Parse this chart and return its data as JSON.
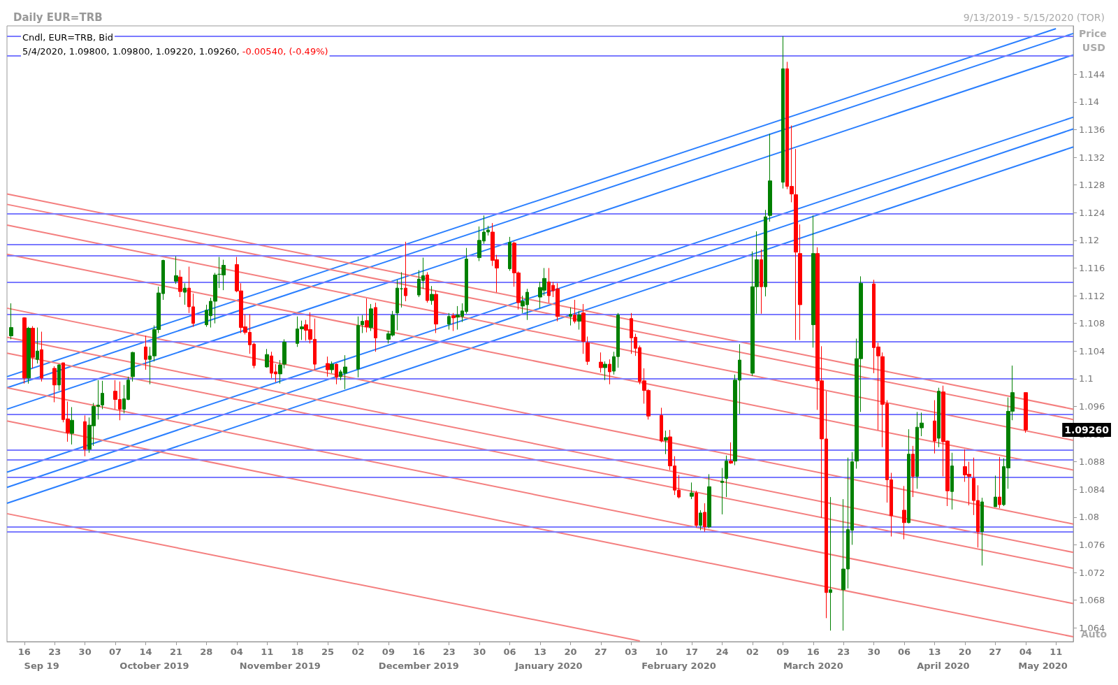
{
  "chart_data": {
    "type": "candlestick",
    "title": "Daily EUR=TRB",
    "subtitle": "9/13/2019 - 5/15/2020 (TOR)",
    "ylabel": "Price USD",
    "annotations": [
      "Cndl, EUR=TRB, Bid",
      "5/4/2020, 1.09800, 1.09800, 1.09220, 1.09260,",
      "-0.00540, (-0.49%)",
      "Auto",
      "1.09260"
    ],
    "xlim": [
      "2019-09-12",
      "2020-05-15"
    ],
    "xticks": [
      {
        "value": "2019-09-16",
        "label": "16"
      },
      {
        "value": "2019-09-23",
        "label": "23"
      },
      {
        "value": "2019-09-30",
        "label": "30"
      },
      {
        "value": "2019-10-07",
        "label": "07"
      },
      {
        "value": "2019-10-14",
        "label": "14"
      },
      {
        "value": "2019-10-21",
        "label": "21"
      },
      {
        "value": "2019-10-28",
        "label": "28"
      },
      {
        "value": "2019-11-04",
        "label": "04"
      },
      {
        "value": "2019-11-11",
        "label": "11"
      },
      {
        "value": "2019-11-18",
        "label": "18"
      },
      {
        "value": "2019-11-25",
        "label": "25"
      },
      {
        "value": "2019-12-02",
        "label": "02"
      },
      {
        "value": "2019-12-09",
        "label": "09"
      },
      {
        "value": "2019-12-16",
        "label": "16"
      },
      {
        "value": "2019-12-23",
        "label": "23"
      },
      {
        "value": "2019-12-30",
        "label": "30"
      },
      {
        "value": "2020-01-06",
        "label": "06"
      },
      {
        "value": "2020-01-13",
        "label": "13"
      },
      {
        "value": "2020-01-20",
        "label": "20"
      },
      {
        "value": "2020-01-27",
        "label": "27"
      },
      {
        "value": "2020-02-03",
        "label": "03"
      },
      {
        "value": "2020-02-10",
        "label": "10"
      },
      {
        "value": "2020-02-17",
        "label": "17"
      },
      {
        "value": "2020-02-24",
        "label": "24"
      },
      {
        "value": "2020-03-02",
        "label": "02"
      },
      {
        "value": "2020-03-09",
        "label": "09"
      },
      {
        "value": "2020-03-16",
        "label": "16"
      },
      {
        "value": "2020-03-23",
        "label": "23"
      },
      {
        "value": "2020-03-30",
        "label": "30"
      },
      {
        "value": "2020-04-06",
        "label": "06"
      },
      {
        "value": "2020-04-13",
        "label": "13"
      },
      {
        "value": "2020-04-20",
        "label": "20"
      },
      {
        "value": "2020-04-27",
        "label": "27"
      },
      {
        "value": "2020-05-04",
        "label": "04"
      },
      {
        "value": "2020-05-11",
        "label": "11"
      }
    ],
    "x2lim": [
      "2019-09-12",
      "2020-05-15"
    ],
    "x2ticks": [
      {
        "value": "2019-09-20",
        "label": "Sep 19"
      },
      {
        "value": "2019-10-16",
        "label": "October 2019"
      },
      {
        "value": "2019-11-14",
        "label": "November 2019"
      },
      {
        "value": "2019-12-16",
        "label": "December 2019"
      },
      {
        "value": "2020-01-15",
        "label": "January 2020"
      },
      {
        "value": "2020-02-14",
        "label": "February 2020"
      },
      {
        "value": "2020-03-16",
        "label": "March 2020"
      },
      {
        "value": "2020-04-15",
        "label": "April 2020"
      },
      {
        "value": "2020-05-08",
        "label": "May 2020"
      }
    ],
    "ylim": [
      1.062,
      1.151
    ],
    "yticks": [
      1.064,
      1.068,
      1.072,
      1.076,
      1.08,
      1.084,
      1.088,
      1.092,
      1.096,
      1.1,
      1.104,
      1.108,
      1.112,
      1.116,
      1.12,
      1.124,
      1.128,
      1.132,
      1.136,
      1.14,
      1.144
    ],
    "grid": false,
    "ref_lines": [
      {
        "axis": "y",
        "value": 1.1495,
        "color": "#7a7aff"
      },
      {
        "axis": "y",
        "value": 1.1467,
        "color": "#7a7aff"
      },
      {
        "axis": "y",
        "value": 1.1238,
        "color": "#7a7aff"
      },
      {
        "axis": "y",
        "value": 1.1194,
        "color": "#7a7aff"
      },
      {
        "axis": "y",
        "value": 1.1178,
        "color": "#7a7aff"
      },
      {
        "axis": "y",
        "value": 1.1139,
        "color": "#7a7aff"
      },
      {
        "axis": "y",
        "value": 1.1093,
        "color": "#7a7aff"
      },
      {
        "axis": "y",
        "value": 1.1054,
        "color": "#7a7aff"
      },
      {
        "axis": "y",
        "value": 1.1,
        "color": "#7a7aff"
      },
      {
        "axis": "y",
        "value": 1.0949,
        "color": "#7a7aff"
      },
      {
        "axis": "y",
        "value": 1.0897,
        "color": "#7a7aff"
      },
      {
        "axis": "y",
        "value": 1.0883,
        "color": "#7a7aff"
      },
      {
        "axis": "y",
        "value": 1.0858,
        "color": "#7a7aff"
      },
      {
        "axis": "y",
        "value": 1.0786,
        "color": "#7a7aff"
      },
      {
        "axis": "y",
        "value": 1.0779,
        "color": "#7a7aff"
      }
    ],
    "series": [
      {
        "x": [
          "2019-09-13",
          "2019-09-16",
          "2019-09-17",
          "2019-09-18",
          "2019-09-19",
          "2019-09-20",
          "2019-09-23",
          "2019-09-24",
          "2019-09-25",
          "2019-09-26",
          "2019-09-27",
          "2019-09-30",
          "2019-10-01",
          "2019-10-02",
          "2019-10-03",
          "2019-10-04",
          "2019-10-07",
          "2019-10-08",
          "2019-10-09",
          "2019-10-10",
          "2019-10-11",
          "2019-10-14",
          "2019-10-15",
          "2019-10-16",
          "2019-10-17",
          "2019-10-18",
          "2019-10-21",
          "2019-10-22",
          "2019-10-23",
          "2019-10-24",
          "2019-10-25",
          "2019-10-28",
          "2019-10-29",
          "2019-10-30",
          "2019-10-31",
          "2019-11-01",
          "2019-11-04",
          "2019-11-05",
          "2019-11-06",
          "2019-11-07",
          "2019-11-08",
          "2019-11-11",
          "2019-11-12",
          "2019-11-13",
          "2019-11-14",
          "2019-11-15",
          "2019-11-18",
          "2019-11-19",
          "2019-11-20",
          "2019-11-21",
          "2019-11-22",
          "2019-11-25",
          "2019-11-26",
          "2019-11-27",
          "2019-11-28",
          "2019-11-29",
          "2019-12-02",
          "2019-12-03",
          "2019-12-04",
          "2019-12-05",
          "2019-12-06",
          "2019-12-09",
          "2019-12-10",
          "2019-12-11",
          "2019-12-12",
          "2019-12-13",
          "2019-12-16",
          "2019-12-17",
          "2019-12-18",
          "2019-12-19",
          "2019-12-20",
          "2019-12-23",
          "2019-12-24",
          "2019-12-25",
          "2019-12-26",
          "2019-12-27",
          "2019-12-30",
          "2019-12-31",
          "2020-01-01",
          "2020-01-02",
          "2020-01-03",
          "2020-01-06",
          "2020-01-07",
          "2020-01-08",
          "2020-01-09",
          "2020-01-10",
          "2020-01-13",
          "2020-01-14",
          "2020-01-15",
          "2020-01-16",
          "2020-01-17",
          "2020-01-20",
          "2020-01-21",
          "2020-01-22",
          "2020-01-23",
          "2020-01-24",
          "2020-01-27",
          "2020-01-28",
          "2020-01-29",
          "2020-01-30",
          "2020-01-31",
          "2020-02-03",
          "2020-02-04",
          "2020-02-05",
          "2020-02-06",
          "2020-02-07",
          "2020-02-10",
          "2020-02-11",
          "2020-02-12",
          "2020-02-13",
          "2020-02-14",
          "2020-02-17",
          "2020-02-18",
          "2020-02-19",
          "2020-02-20",
          "2020-02-21",
          "2020-02-24",
          "2020-02-25",
          "2020-02-26",
          "2020-02-27",
          "2020-02-28",
          "2020-03-02",
          "2020-03-03",
          "2020-03-04",
          "2020-03-05",
          "2020-03-06",
          "2020-03-09",
          "2020-03-10",
          "2020-03-11",
          "2020-03-12",
          "2020-03-13",
          "2020-03-16",
          "2020-03-17",
          "2020-03-18",
          "2020-03-19",
          "2020-03-20",
          "2020-03-23",
          "2020-03-24",
          "2020-03-25",
          "2020-03-26",
          "2020-03-27",
          "2020-03-30",
          "2020-03-31",
          "2020-04-01",
          "2020-04-02",
          "2020-04-03",
          "2020-04-06",
          "2020-04-07",
          "2020-04-08",
          "2020-04-09",
          "2020-04-10",
          "2020-04-13",
          "2020-04-14",
          "2020-04-15",
          "2020-04-16",
          "2020-04-17",
          "2020-04-20",
          "2020-04-21",
          "2020-04-22",
          "2020-04-23",
          "2020-04-24",
          "2020-04-27",
          "2020-04-28",
          "2020-04-29",
          "2020-04-30",
          "2020-05-01",
          "2020-05-04"
        ],
        "ohlc": [
          [
            1.1062,
            1.1109,
            1.1057,
            1.1074
          ],
          [
            1.1088,
            1.1089,
            1.0993,
            1.1001
          ],
          [
            1.1001,
            1.1075,
            1.0993,
            1.1073
          ],
          [
            1.1073,
            1.1076,
            1.1015,
            1.1031
          ],
          [
            1.1028,
            1.1074,
            1.1022,
            1.104
          ],
          [
            1.1042,
            1.1068,
            1.0996,
            1.1001
          ],
          [
            1.1015,
            1.1018,
            1.0966,
            1.0991
          ],
          [
            1.0991,
            1.1021,
            1.0983,
            1.102
          ],
          [
            1.1023,
            1.1023,
            1.0937,
            1.0941
          ],
          [
            1.0942,
            1.0967,
            1.0909,
            1.0922
          ],
          [
            1.0921,
            1.0959,
            1.0905,
            1.094
          ],
          [
            1.0938,
            1.0947,
            1.0888,
            1.0898
          ],
          [
            1.0898,
            1.0944,
            1.0893,
            1.0933
          ],
          [
            1.0932,
            1.0965,
            1.0903,
            1.096
          ],
          [
            1.096,
            1.0998,
            1.0941,
            1.0962
          ],
          [
            1.0962,
            1.0997,
            1.0956,
            1.0979
          ],
          [
            1.0982,
            1.0998,
            1.0956,
            1.097
          ],
          [
            1.097,
            1.0996,
            1.094,
            1.0956
          ],
          [
            1.0956,
            1.0991,
            1.095,
            1.0971
          ],
          [
            1.097,
            1.1003,
            1.0969,
            1.0998
          ],
          [
            1.1003,
            1.1039,
            1.0996,
            1.1038
          ],
          [
            1.1046,
            1.1062,
            1.1013,
            1.1028
          ],
          [
            1.1028,
            1.1046,
            1.0992,
            1.1033
          ],
          [
            1.1033,
            1.1077,
            1.1025,
            1.1071
          ],
          [
            1.1071,
            1.1133,
            1.1066,
            1.1124
          ],
          [
            1.1123,
            1.1172,
            1.1114,
            1.1171
          ],
          [
            1.1141,
            1.1177,
            1.1137,
            1.1149
          ],
          [
            1.1147,
            1.1157,
            1.1118,
            1.1126
          ],
          [
            1.1125,
            1.1138,
            1.1107,
            1.1131
          ],
          [
            1.1131,
            1.1162,
            1.1095,
            1.1104
          ],
          [
            1.1104,
            1.1123,
            1.1075,
            1.108
          ],
          [
            1.1078,
            1.1107,
            1.1075,
            1.1099
          ],
          [
            1.1091,
            1.1117,
            1.1074,
            1.1112
          ],
          [
            1.1112,
            1.1153,
            1.108,
            1.115
          ],
          [
            1.1151,
            1.1176,
            1.1131,
            1.1151
          ],
          [
            1.115,
            1.1172,
            1.1128,
            1.1164
          ],
          [
            1.1165,
            1.1176,
            1.1125,
            1.1127
          ],
          [
            1.1127,
            1.1138,
            1.1066,
            1.1074
          ],
          [
            1.1075,
            1.1093,
            1.1064,
            1.1067
          ],
          [
            1.1067,
            1.1093,
            1.1036,
            1.1049
          ],
          [
            1.105,
            1.1052,
            1.1015,
            1.1019
          ],
          [
            1.1017,
            1.1043,
            1.1016,
            1.1035
          ],
          [
            1.1033,
            1.1039,
            1.1001,
            1.1008
          ],
          [
            1.101,
            1.1021,
            1.0995,
            1.1007
          ],
          [
            1.1007,
            1.1027,
            1.0993,
            1.102
          ],
          [
            1.1021,
            1.1057,
            1.1015,
            1.1053
          ],
          [
            1.1051,
            1.109,
            1.1046,
            1.1072
          ],
          [
            1.1072,
            1.1084,
            1.1056,
            1.1075
          ],
          [
            1.1078,
            1.1085,
            1.1055,
            1.107
          ],
          [
            1.1071,
            1.1096,
            1.1051,
            1.1057
          ],
          [
            1.1057,
            1.1087,
            1.1013,
            1.1021
          ],
          [
            1.1022,
            1.1032,
            1.1003,
            1.1013
          ],
          [
            1.1013,
            1.1025,
            1.1008,
            1.1021
          ],
          [
            1.1021,
            1.1022,
            1.0992,
            1.1002
          ],
          [
            1.1003,
            1.1013,
            1.0998,
            1.101
          ],
          [
            1.1008,
            1.1034,
            1.0985,
            1.1017
          ],
          [
            1.1014,
            1.109,
            1.1002,
            1.1077
          ],
          [
            1.1078,
            1.1092,
            1.1066,
            1.1083
          ],
          [
            1.1084,
            1.1116,
            1.1067,
            1.1075
          ],
          [
            1.1074,
            1.1108,
            1.1069,
            1.1101
          ],
          [
            1.1103,
            1.111,
            1.1039,
            1.1059
          ],
          [
            1.1057,
            1.1069,
            1.1051,
            1.1065
          ],
          [
            1.1063,
            1.1098,
            1.1061,
            1.1092
          ],
          [
            1.1095,
            1.1143,
            1.107,
            1.1131
          ],
          [
            1.113,
            1.1154,
            1.1103,
            1.113
          ],
          [
            1.1131,
            1.1198,
            1.1112,
            1.112
          ],
          [
            1.1121,
            1.1157,
            1.1118,
            1.1144
          ],
          [
            1.1142,
            1.1175,
            1.113,
            1.1149
          ],
          [
            1.115,
            1.1154,
            1.111,
            1.1113
          ],
          [
            1.1113,
            1.1134,
            1.1107,
            1.1122
          ],
          [
            1.1122,
            1.1127,
            1.1066,
            1.1079
          ],
          [
            1.1079,
            1.1095,
            1.1071,
            1.109
          ],
          [
            1.1091,
            1.1095,
            1.1069,
            1.1088
          ],
          [
            1.1089,
            1.1105,
            1.1071,
            1.1092
          ],
          [
            1.109,
            1.1109,
            1.1082,
            1.1098
          ],
          [
            1.1097,
            1.1189,
            1.1094,
            1.1173
          ],
          [
            1.1175,
            1.122,
            1.117,
            1.12
          ],
          [
            1.1199,
            1.1236,
            1.1195,
            1.1212
          ],
          [
            1.1212,
            1.1221,
            1.1207,
            1.1215
          ],
          [
            1.1212,
            1.1225,
            1.1163,
            1.1171
          ],
          [
            1.1172,
            1.1179,
            1.1125,
            1.116
          ],
          [
            1.1159,
            1.1205,
            1.1156,
            1.1197
          ],
          [
            1.1196,
            1.1198,
            1.1133,
            1.1153
          ],
          [
            1.1153,
            1.1155,
            1.11,
            1.111
          ],
          [
            1.1105,
            1.112,
            1.1095,
            1.1112
          ],
          [
            1.1107,
            1.113,
            1.1085,
            1.1125
          ],
          [
            1.1118,
            1.114,
            1.1102,
            1.1132
          ],
          [
            1.1128,
            1.116,
            1.112,
            1.1145
          ],
          [
            1.114,
            1.116,
            1.111,
            1.112
          ],
          [
            1.1135,
            1.114,
            1.1118,
            1.1127
          ],
          [
            1.113,
            1.1138,
            1.1083,
            1.109
          ],
          [
            1.109,
            1.1103,
            1.1077,
            1.1093
          ],
          [
            1.1092,
            1.1114,
            1.108,
            1.1083
          ],
          [
            1.1083,
            1.1098,
            1.1071,
            1.1092
          ],
          [
            1.1095,
            1.1108,
            1.1036,
            1.1054
          ],
          [
            1.1052,
            1.1061,
            1.102,
            1.1025
          ],
          [
            1.1024,
            1.1038,
            1.1009,
            1.1016
          ],
          [
            1.1016,
            1.1025,
            1.0998,
            1.1021
          ],
          [
            1.1021,
            1.1028,
            1.0992,
            1.101
          ],
          [
            1.1011,
            1.1039,
            1.1006,
            1.1032
          ],
          [
            1.1032,
            1.1095,
            1.1016,
            1.1092
          ],
          [
            1.1087,
            1.1095,
            1.1036,
            1.1059
          ],
          [
            1.106,
            1.1065,
            1.1033,
            1.1044
          ],
          [
            1.1045,
            1.1048,
            1.0992,
            1.0996
          ],
          [
            1.0997,
            1.1015,
            1.0964,
            1.0983
          ],
          [
            1.0983,
            1.0985,
            1.0941,
            1.0946
          ],
          [
            1.0947,
            1.0958,
            1.0908,
            1.091
          ],
          [
            1.0911,
            1.0925,
            1.0891,
            1.0915
          ],
          [
            1.0916,
            1.0926,
            1.0868,
            1.0874
          ],
          [
            1.0874,
            1.0888,
            1.0832,
            1.0839
          ],
          [
            1.0839,
            1.0861,
            1.0827,
            1.0829
          ],
          [
            1.083,
            1.085,
            1.0826,
            1.0835
          ],
          [
            1.0835,
            1.0838,
            1.0785,
            1.0788
          ],
          [
            1.0788,
            1.081,
            1.0781,
            1.0806
          ],
          [
            1.0807,
            1.082,
            1.0779,
            1.0786
          ],
          [
            1.0786,
            1.0862,
            1.0784,
            1.0844
          ],
          [
            1.085,
            1.0871,
            1.0804,
            1.0852
          ],
          [
            1.0856,
            1.0889,
            1.0829,
            1.0881
          ],
          [
            1.0881,
            1.0908,
            1.0877,
            1.0878
          ],
          [
            1.0881,
            1.1006,
            1.0875,
            1.0998
          ],
          [
            1.0998,
            1.105,
            1.0949,
            1.1027
          ],
          [
            1.1008,
            1.1184,
            1.1004,
            1.1133
          ],
          [
            1.1133,
            1.1213,
            1.1094,
            1.1172
          ],
          [
            1.1172,
            1.1187,
            1.1094,
            1.1133
          ],
          [
            1.1133,
            1.1244,
            1.1119,
            1.1234
          ],
          [
            1.1236,
            1.1354,
            1.1227,
            1.1286
          ],
          [
            1.1284,
            1.1495,
            1.1275,
            1.1448
          ],
          [
            1.1448,
            1.1458,
            1.1274,
            1.1278
          ],
          [
            1.1278,
            1.1366,
            1.1255,
            1.1267
          ],
          [
            1.1266,
            1.1332,
            1.1056,
            1.1183
          ],
          [
            1.1181,
            1.1223,
            1.1056,
            1.1107
          ],
          [
            1.1078,
            1.1236,
            1.1045,
            1.1181
          ],
          [
            1.1181,
            1.119,
            1.0955,
            1.0997
          ],
          [
            1.0997,
            1.1047,
            1.0799,
            1.0913
          ],
          [
            1.0913,
            1.0982,
            1.0654,
            1.0691
          ],
          [
            1.0691,
            1.0829,
            1.0636,
            1.0695
          ],
          [
            1.0695,
            1.0826,
            1.0636,
            1.0725
          ],
          [
            1.0725,
            1.0886,
            1.0697,
            1.0782
          ],
          [
            1.0781,
            1.0894,
            1.076,
            1.088
          ],
          [
            1.0881,
            1.1058,
            1.087,
            1.1029
          ],
          [
            1.1029,
            1.1148,
            1.0952,
            1.1138
          ],
          [
            1.1137,
            1.1143,
            1.1008,
            1.1045
          ],
          [
            1.1046,
            1.1052,
            1.0926,
            1.1033
          ],
          [
            1.1032,
            1.1038,
            1.0901,
            1.0963
          ],
          [
            1.0964,
            1.0969,
            1.0821,
            1.0854
          ],
          [
            1.0854,
            1.0864,
            1.0772,
            1.0802
          ],
          [
            1.081,
            1.0845,
            1.0768,
            1.0792
          ],
          [
            1.0792,
            1.0927,
            1.0791,
            1.0891
          ],
          [
            1.0891,
            1.0903,
            1.0829,
            1.0859
          ],
          [
            1.0859,
            1.0952,
            1.0841,
            1.093
          ],
          [
            1.0929,
            1.0951,
            1.0917,
            1.0936
          ],
          [
            1.0939,
            1.0969,
            1.0892,
            1.091
          ],
          [
            1.0914,
            1.0987,
            1.0901,
            1.0982
          ],
          [
            1.0981,
            1.099,
            1.0859,
            1.0909
          ],
          [
            1.091,
            1.0911,
            1.0816,
            1.0838
          ],
          [
            1.0837,
            1.0893,
            1.0811,
            1.0874
          ],
          [
            1.0873,
            1.0898,
            1.0851,
            1.0861
          ],
          [
            1.0862,
            1.088,
            1.0817,
            1.0859
          ],
          [
            1.0856,
            1.0886,
            1.0803,
            1.0824
          ],
          [
            1.0824,
            1.0846,
            1.0756,
            1.0779
          ],
          [
            1.0779,
            1.0828,
            1.073,
            1.0822
          ],
          [
            1.0815,
            1.086,
            1.0815,
            1.0829
          ],
          [
            1.0829,
            1.0887,
            1.0813,
            1.0818
          ],
          [
            1.0818,
            1.0885,
            1.0816,
            1.0873
          ],
          [
            1.0871,
            1.0973,
            1.0841,
            1.0953
          ],
          [
            1.0953,
            1.1019,
            1.094,
            1.098
          ],
          [
            1.098,
            1.098,
            1.0922,
            1.0926
          ]
        ],
        "colors": [
          "#008000",
          "#ff0000",
          "#008000",
          "#ff0000",
          "#008000",
          "#ff0000",
          "#ff0000",
          "#008000",
          "#ff0000",
          "#ff0000",
          "#008000",
          "#ff0000",
          "#008000",
          "#008000",
          "#008000",
          "#008000",
          "#ff0000",
          "#ff0000",
          "#008000",
          "#008000",
          "#008000",
          "#ff0000",
          "#008000",
          "#008000",
          "#008000",
          "#008000",
          "#008000",
          "#ff0000",
          "#008000",
          "#ff0000",
          "#ff0000",
          "#008000",
          "#008000",
          "#008000",
          "#008000",
          "#008000",
          "#ff0000",
          "#ff0000",
          "#ff0000",
          "#ff0000",
          "#ff0000",
          "#008000",
          "#ff0000",
          "#ff0000",
          "#008000",
          "#008000",
          "#008000",
          "#008000",
          "#ff0000",
          "#ff0000",
          "#ff0000",
          "#ff0000",
          "#008000",
          "#ff0000",
          "#008000",
          "#008000",
          "#008000",
          "#008000",
          "#ff0000",
          "#008000",
          "#ff0000",
          "#008000",
          "#008000",
          "#008000",
          "#008000",
          "#ff0000",
          "#008000",
          "#008000",
          "#ff0000",
          "#008000",
          "#ff0000",
          "#008000",
          "#ff0000",
          "#008000",
          "#008000",
          "#008000",
          "#008000",
          "#008000",
          "#008000",
          "#ff0000",
          "#ff0000",
          "#008000",
          "#ff0000",
          "#ff0000",
          "#008000",
          "#008000",
          "#008000",
          "#008000",
          "#ff0000",
          "#ff0000",
          "#ff0000",
          "#008000",
          "#ff0000",
          "#008000",
          "#ff0000",
          "#ff0000",
          "#ff0000",
          "#008000",
          "#ff0000",
          "#008000",
          "#008000",
          "#ff0000",
          "#ff0000",
          "#ff0000",
          "#ff0000",
          "#ff0000",
          "#ff0000",
          "#008000",
          "#ff0000",
          "#ff0000",
          "#ff0000",
          "#008000",
          "#ff0000",
          "#008000",
          "#ff0000",
          "#008000",
          "#008000",
          "#008000",
          "#ff0000",
          "#008000",
          "#008000",
          "#008000",
          "#008000",
          "#ff0000",
          "#008000",
          "#008000",
          "#008000",
          "#ff0000",
          "#ff0000",
          "#ff0000",
          "#ff0000",
          "#008000",
          "#ff0000",
          "#ff0000",
          "#ff0000",
          "#008000",
          "#008000",
          "#008000",
          "#008000",
          "#008000",
          "#008000",
          "#ff0000",
          "#ff0000",
          "#ff0000",
          "#ff0000",
          "#ff0000",
          "#ff0000",
          "#008000",
          "#ff0000",
          "#008000",
          "#008000",
          "#ff0000",
          "#008000",
          "#ff0000",
          "#ff0000",
          "#008000",
          "#ff0000",
          "#ff0000",
          "#ff0000",
          "#ff0000",
          "#008000",
          "#008000",
          "#ff0000",
          "#008000",
          "#008000",
          "#008000",
          "#ff0000"
        ]
      },
      {
        "type": "line",
        "color": "#2a7fff",
        "x": [
          "2019-09-12",
          "2020-05-11"
        ],
        "values": [
          1.1003,
          1.1506
        ]
      },
      {
        "type": "line",
        "color": "#2a7fff",
        "x": [
          "2019-09-12",
          "2020-05-15"
        ],
        "values": [
          1.0987,
          1.1499
        ]
      },
      {
        "type": "line",
        "color": "#2a7fff",
        "x": [
          "2019-09-12",
          "2020-05-15"
        ],
        "values": [
          1.0956,
          1.1468
        ]
      },
      {
        "type": "line",
        "color": "#2a7fff",
        "x": [
          "2019-09-12",
          "2020-05-15"
        ],
        "values": [
          1.0865,
          1.1378
        ]
      },
      {
        "type": "line",
        "color": "#2a7fff",
        "x": [
          "2019-09-12",
          "2020-05-15"
        ],
        "values": [
          1.0843,
          1.1361
        ]
      },
      {
        "type": "line",
        "color": "#2a7fff",
        "x": [
          "2019-09-12",
          "2020-05-15"
        ],
        "values": [
          1.082,
          1.1335
        ]
      },
      {
        "type": "line",
        "color": "#f47f7f",
        "x": [
          "2019-09-12",
          "2020-05-15"
        ],
        "values": [
          1.1267,
          1.0956
        ]
      },
      {
        "type": "line",
        "color": "#f47f7f",
        "x": [
          "2019-09-12",
          "2020-05-15"
        ],
        "values": [
          1.1252,
          1.0941
        ]
      },
      {
        "type": "line",
        "color": "#f47f7f",
        "x": [
          "2019-09-12",
          "2020-05-15"
        ],
        "values": [
          1.1222,
          1.0911
        ]
      },
      {
        "type": "line",
        "color": "#f47f7f",
        "x": [
          "2019-09-12",
          "2020-05-15"
        ],
        "values": [
          1.118,
          1.0868
        ]
      },
      {
        "type": "line",
        "color": "#f47f7f",
        "x": [
          "2019-09-12",
          "2020-05-15"
        ],
        "values": [
          1.1102,
          1.079
        ]
      },
      {
        "type": "line",
        "color": "#f47f7f",
        "x": [
          "2019-09-12",
          "2020-05-15"
        ],
        "values": [
          1.106,
          1.0749
        ]
      },
      {
        "type": "line",
        "color": "#f47f7f",
        "x": [
          "2019-09-12",
          "2020-05-15"
        ],
        "values": [
          1.1037,
          1.0726
        ]
      },
      {
        "type": "line",
        "color": "#f47f7f",
        "x": [
          "2019-09-12",
          "2020-05-15"
        ],
        "values": [
          1.0987,
          1.0675
        ]
      },
      {
        "type": "line",
        "color": "#f47f7f",
        "x": [
          "2019-09-12",
          "2020-05-15"
        ],
        "values": [
          1.0939,
          1.0627
        ]
      },
      {
        "type": "line",
        "color": "#f47f7f",
        "x": [
          "2019-09-12",
          "2020-02-05"
        ],
        "values": [
          1.0805,
          1.0621
        ]
      }
    ]
  }
}
